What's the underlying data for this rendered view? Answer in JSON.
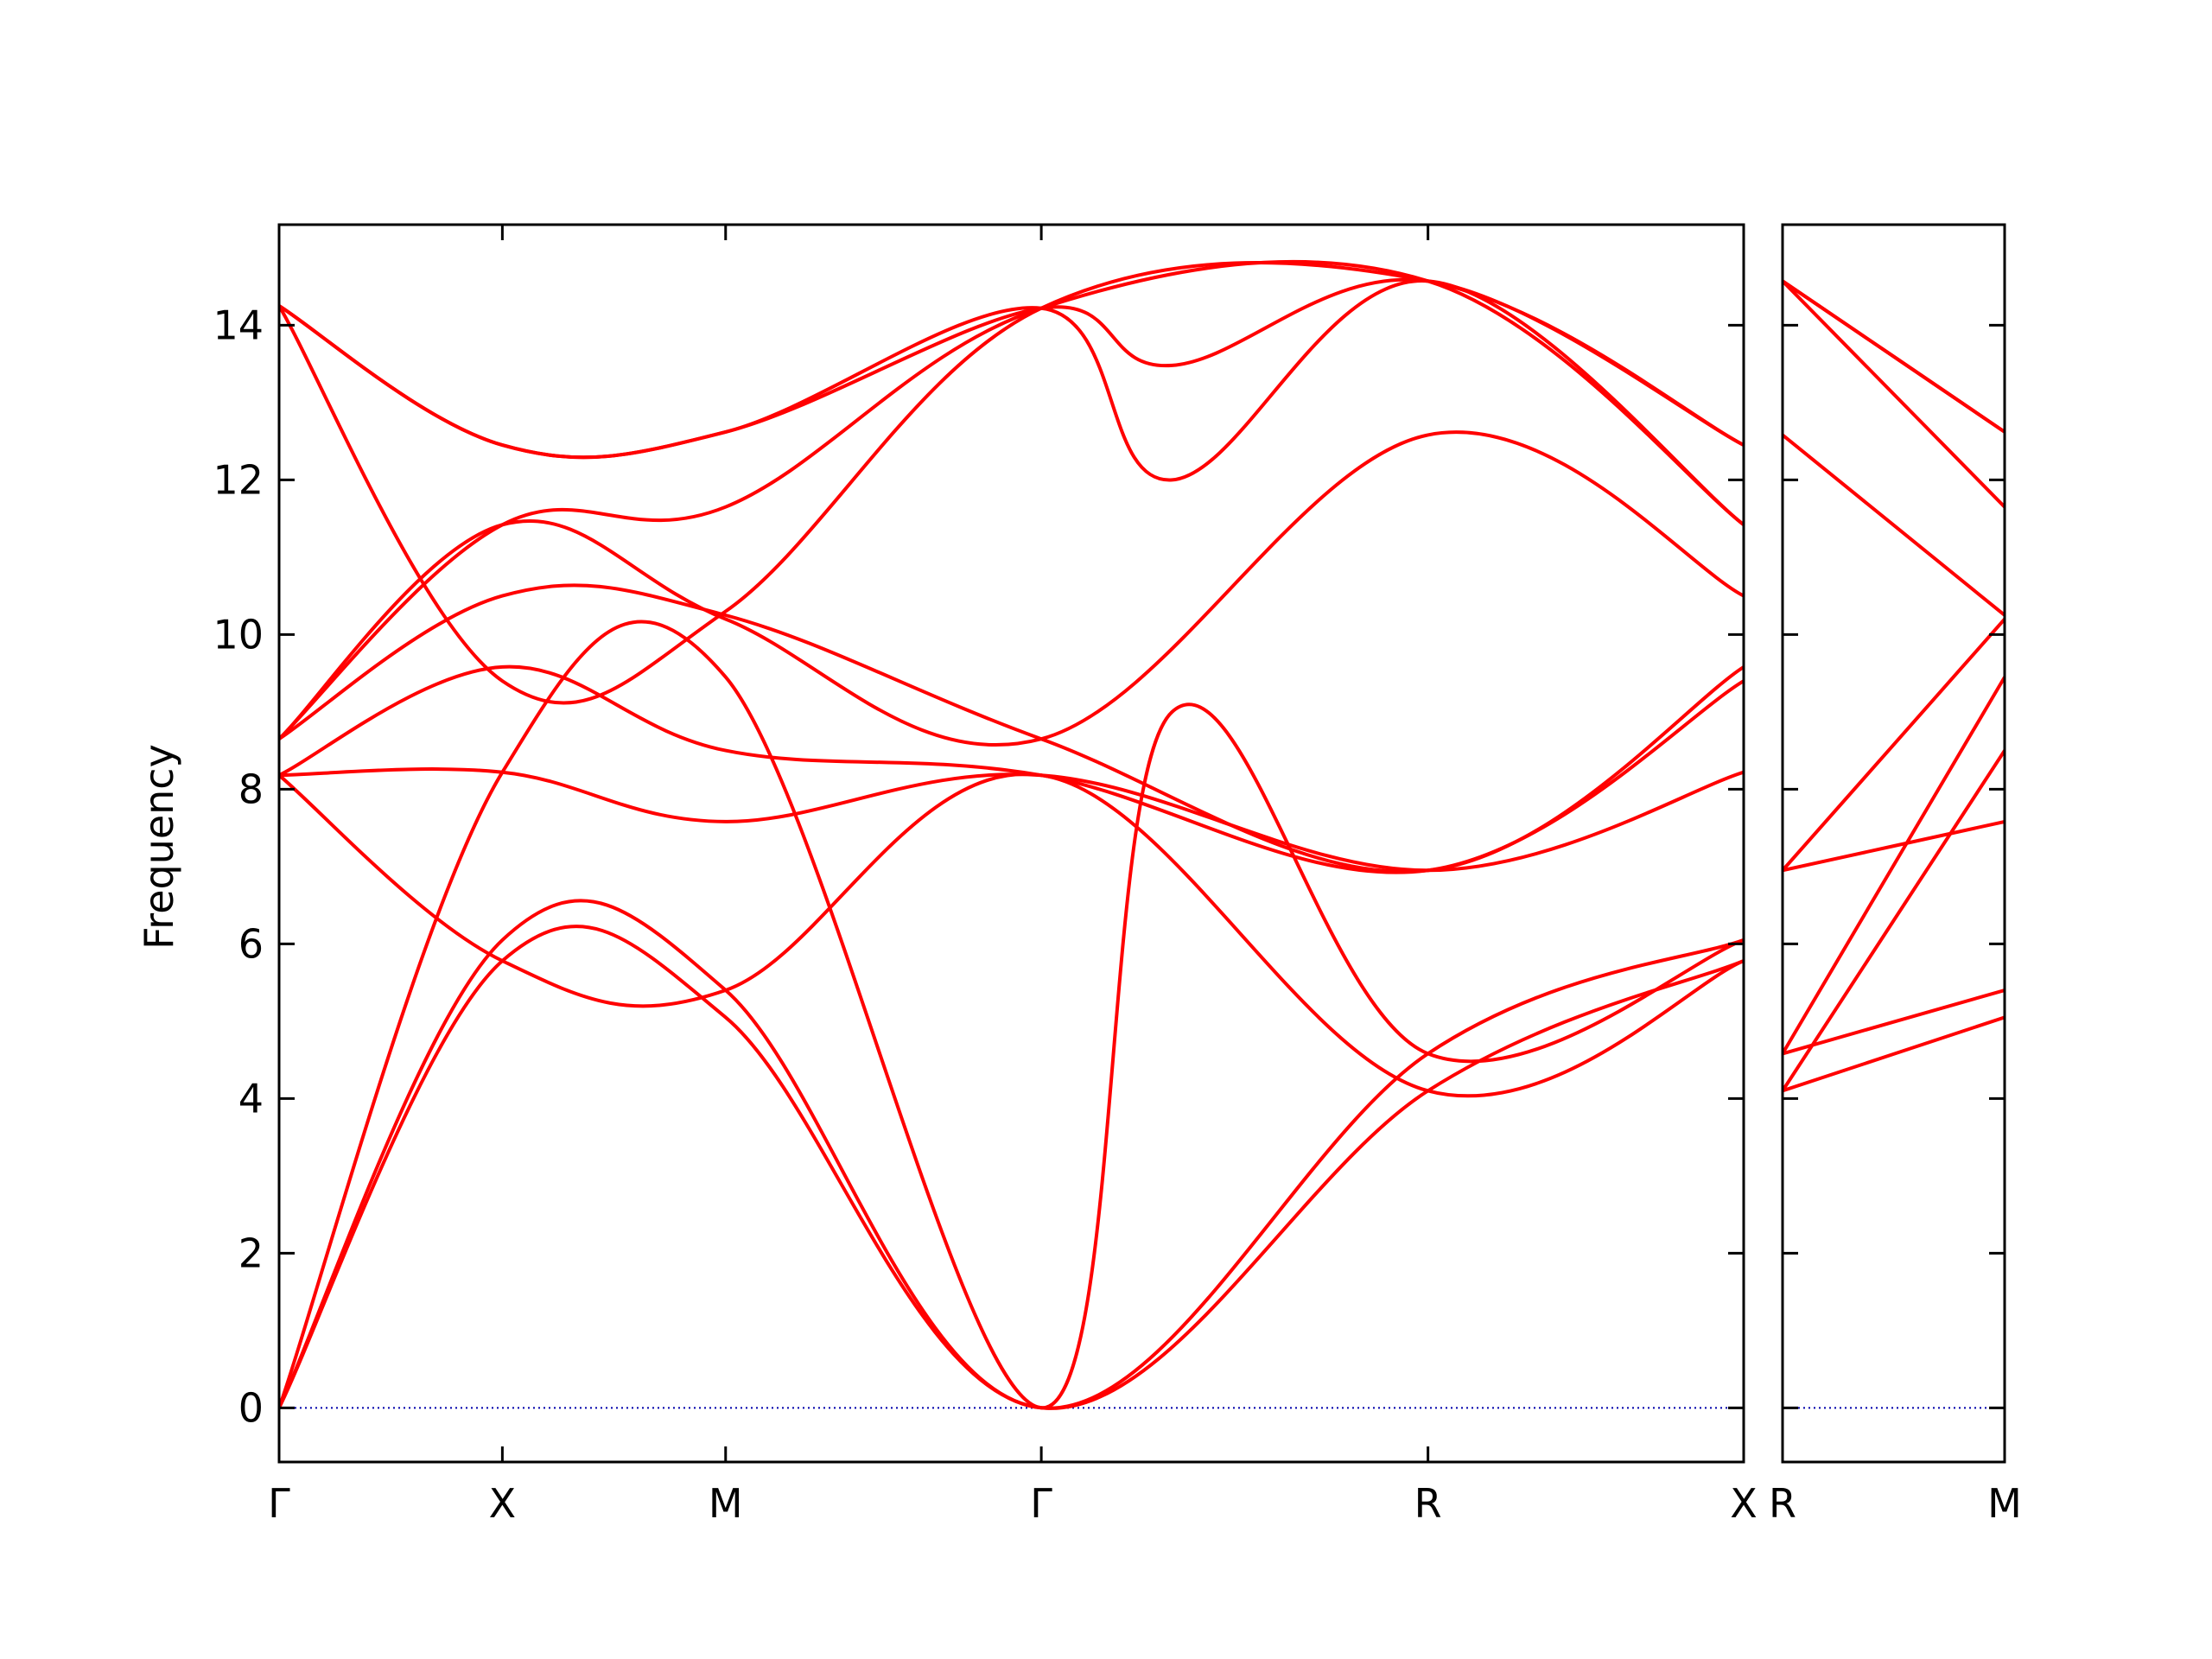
{
  "chart_data": {
    "type": "line",
    "ylabel": "Frequency",
    "xlabel": "",
    "ylim": [
      -0.7,
      15.3
    ],
    "yticks": [
      0,
      2,
      4,
      6,
      8,
      10,
      12,
      14
    ],
    "grid": false,
    "colors": {
      "bands": "#ff0000",
      "zero_line": "#0000aa",
      "axes": "#000000"
    },
    "panels": [
      {
        "id": "main",
        "x_ticks": [
          {
            "label": "Γ",
            "x": 0.0
          },
          {
            "label": "X",
            "x": 0.5
          },
          {
            "label": "M",
            "x": 1.0
          },
          {
            "label": "Γ",
            "x": 1.707
          },
          {
            "label": "R",
            "x": 2.573
          },
          {
            "label": "X",
            "x": 3.28
          }
        ],
        "xlim": [
          0.0,
          3.28
        ],
        "bands": [
          {
            "x": [
              0,
              0.5,
              1.0,
              1.707,
              2.573,
              3.28
            ],
            "y": [
              0,
              5.78,
              5.05,
              0,
              4.1,
              5.78
            ]
          },
          {
            "x": [
              0,
              0.5,
              1.0,
              1.707,
              2.573,
              3.28
            ],
            "y": [
              0,
              6.05,
              5.4,
              0,
              4.58,
              6.05
            ]
          },
          {
            "x": [
              0,
              0.5,
              1.0,
              1.707,
              2.0,
              2.573,
              3.28
            ],
            "y": [
              0,
              8.22,
              9.45,
              0,
              9.0,
              4.58,
              6.05
            ]
          },
          {
            "x": [
              0,
              0.5,
              1.0,
              1.707,
              2.573,
              3.28
            ],
            "y": [
              8.18,
              5.78,
              5.4,
              8.18,
              4.1,
              5.78
            ]
          },
          {
            "x": [
              0,
              0.5,
              1.0,
              1.707,
              2.573,
              3.28
            ],
            "y": [
              8.18,
              8.22,
              7.58,
              8.18,
              6.95,
              8.22
            ]
          },
          {
            "x": [
              0,
              0.5,
              1.0,
              1.707,
              2.573,
              3.28
            ],
            "y": [
              8.18,
              9.58,
              8.5,
              8.18,
              6.95,
              9.4
            ]
          },
          {
            "x": [
              0,
              0.5,
              1.0,
              1.707,
              2.573,
              3.28
            ],
            "y": [
              8.65,
              10.5,
              10.25,
              8.65,
              6.95,
              9.58
            ]
          },
          {
            "x": [
              0,
              0.5,
              1.0,
              1.707,
              2.573,
              3.28
            ],
            "y": [
              8.65,
              11.42,
              10.2,
              8.65,
              12.58,
              10.5
            ]
          },
          {
            "x": [
              0,
              0.5,
              1.0,
              1.707,
              2.573,
              3.28
            ],
            "y": [
              8.65,
              11.42,
              11.65,
              14.22,
              14.57,
              11.42
            ]
          },
          {
            "x": [
              0,
              0.5,
              1.0,
              1.707,
              2.0,
              2.573,
              3.28
            ],
            "y": [
              14.25,
              12.45,
              12.62,
              14.22,
              12.0,
              14.57,
              11.42
            ]
          },
          {
            "x": [
              0,
              0.5,
              1.0,
              1.707,
              2.0,
              2.573,
              3.28
            ],
            "y": [
              14.25,
              12.45,
              12.62,
              14.22,
              13.48,
              14.57,
              12.45
            ]
          },
          {
            "x": [
              0,
              0.5,
              1.0,
              1.707,
              2.573,
              3.28
            ],
            "y": [
              14.25,
              9.4,
              10.3,
              14.22,
              14.57,
              12.45
            ]
          }
        ]
      },
      {
        "id": "right",
        "x_ticks": [
          {
            "label": "R",
            "x": 0.0
          },
          {
            "label": "M",
            "x": 0.5
          }
        ],
        "xlim": [
          0.0,
          0.5
        ],
        "bands": [
          {
            "x": [
              0,
              0.5
            ],
            "y": [
              4.1,
              5.05
            ]
          },
          {
            "x": [
              0,
              0.5
            ],
            "y": [
              4.58,
              5.4
            ]
          },
          {
            "x": [
              0,
              0.5
            ],
            "y": [
              4.1,
              8.5
            ]
          },
          {
            "x": [
              0,
              0.5
            ],
            "y": [
              4.58,
              9.45
            ]
          },
          {
            "x": [
              0,
              0.5
            ],
            "y": [
              6.95,
              7.58
            ]
          },
          {
            "x": [
              0,
              0.5
            ],
            "y": [
              6.95,
              10.2
            ]
          },
          {
            "x": [
              0,
              0.5
            ],
            "y": [
              12.58,
              10.25
            ]
          },
          {
            "x": [
              0,
              0.5
            ],
            "y": [
              14.57,
              11.65
            ]
          },
          {
            "x": [
              0,
              0.5
            ],
            "y": [
              14.57,
              12.62
            ]
          },
          {
            "x": [
              0,
              0.5
            ],
            "y": [
              14.57,
              12.62
            ]
          }
        ]
      }
    ]
  }
}
